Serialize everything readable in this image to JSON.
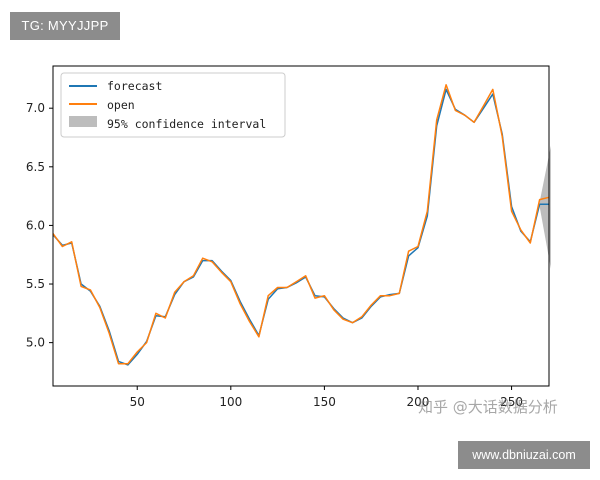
{
  "top_badge": "TG: MYYJJPP",
  "watermark": "知乎 @大话数据分析",
  "bottom_badge": "www.dbniuzai.com",
  "chart_data": {
    "type": "line",
    "x_ticks": [
      50,
      100,
      150,
      200,
      250
    ],
    "y_ticks": [
      5.0,
      5.5,
      6.0,
      6.5,
      7.0
    ],
    "y_tick_labels": [
      "5.0",
      "5.5",
      "6.0",
      "6.5",
      "7.0"
    ],
    "xlim": [
      5,
      270
    ],
    "ylim": [
      4.63,
      7.36
    ],
    "legend": [
      "forecast",
      "open",
      "95% confidence interval"
    ],
    "legend_position": "upper-left",
    "colors": {
      "forecast": "#1f77b4",
      "open": "#ff7f0e",
      "ci": "#bdbdbd"
    },
    "x": [
      5,
      10,
      15,
      20,
      25,
      30,
      35,
      40,
      45,
      50,
      55,
      60,
      65,
      70,
      75,
      80,
      85,
      90,
      95,
      100,
      105,
      110,
      115,
      120,
      125,
      130,
      135,
      140,
      145,
      150,
      155,
      160,
      165,
      170,
      175,
      180,
      185,
      190,
      195,
      200,
      205,
      210,
      215,
      220,
      225,
      230,
      235,
      240,
      245,
      250,
      255,
      260,
      265,
      270
    ],
    "open": [
      5.93,
      5.82,
      5.86,
      5.48,
      5.45,
      5.3,
      5.08,
      4.82,
      4.82,
      4.92,
      5.0,
      5.25,
      5.21,
      5.43,
      5.52,
      5.57,
      5.72,
      5.69,
      5.6,
      5.52,
      5.33,
      5.18,
      5.05,
      5.4,
      5.47,
      5.47,
      5.52,
      5.57,
      5.38,
      5.4,
      5.28,
      5.2,
      5.17,
      5.22,
      5.32,
      5.4,
      5.4,
      5.42,
      5.78,
      5.82,
      6.12,
      6.9,
      7.2,
      6.98,
      6.94,
      6.88,
      7.02,
      7.16,
      6.76,
      6.12,
      5.96,
      5.85,
      6.22,
      6.24
    ],
    "forecast": [
      5.92,
      5.83,
      5.85,
      5.5,
      5.44,
      5.31,
      5.1,
      4.84,
      4.81,
      4.9,
      5.01,
      5.23,
      5.22,
      5.41,
      5.52,
      5.56,
      5.7,
      5.7,
      5.61,
      5.53,
      5.35,
      5.2,
      5.06,
      5.37,
      5.46,
      5.47,
      5.51,
      5.56,
      5.4,
      5.39,
      5.29,
      5.21,
      5.17,
      5.21,
      5.31,
      5.39,
      5.41,
      5.42,
      5.74,
      5.81,
      6.08,
      6.85,
      7.16,
      6.99,
      6.94,
      6.88,
      7.0,
      7.12,
      6.78,
      6.16,
      5.95,
      5.86,
      6.18,
      6.18
    ],
    "confidence_interval": {
      "x_start": 265,
      "x_end": 271,
      "upper_end": 6.68,
      "lower_end": 5.63
    }
  }
}
